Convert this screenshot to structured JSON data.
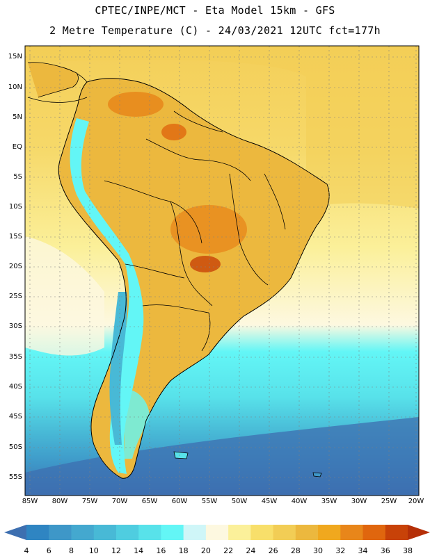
{
  "header": {
    "line1": "CPTEC/INPE/MCT -  Eta Model 15km - GFS",
    "line2": "2 Metre Temperature (C) - 24/03/2021 12UTC fct=177h"
  },
  "axes": {
    "lat_labels": [
      "15N",
      "10N",
      "5N",
      "EQ",
      "5S",
      "10S",
      "15S",
      "20S",
      "25S",
      "30S",
      "35S",
      "40S",
      "45S",
      "50S",
      "55S"
    ],
    "lon_labels": [
      "85W",
      "80W",
      "75W",
      "70W",
      "65W",
      "60W",
      "55W",
      "50W",
      "45W",
      "40W",
      "35W",
      "30W",
      "25W",
      "20W"
    ]
  },
  "colorbar": {
    "ticks": [
      "4",
      "6",
      "8",
      "10",
      "12",
      "14",
      "16",
      "18",
      "20",
      "22",
      "24",
      "26",
      "28",
      "30",
      "32",
      "34",
      "36",
      "38"
    ],
    "colors": [
      "#3d6fb0",
      "#2f85c2",
      "#3e97c8",
      "#44a8cf",
      "#48b9d6",
      "#4fcde0",
      "#58e2ea",
      "#63f6f6",
      "#cff6f8",
      "#fdf8e0",
      "#fbf09a",
      "#f8df6a",
      "#f2cd55",
      "#ecb83e",
      "#f0a81e",
      "#e8861a",
      "#e0660e",
      "#c84208",
      "#b52f07"
    ]
  },
  "map": {
    "ocean_colors": {
      "warm": "#f4cf59",
      "mid": "#fbf09a",
      "cool": "#63f6f6",
      "cold": "#48b9d6",
      "deep": "#3d6fb0"
    },
    "land_colors": {
      "hot": "#ecb83e",
      "veryhot": "#e8861a",
      "andes": "#63f6f6",
      "cold": "#48b9d6"
    }
  }
}
